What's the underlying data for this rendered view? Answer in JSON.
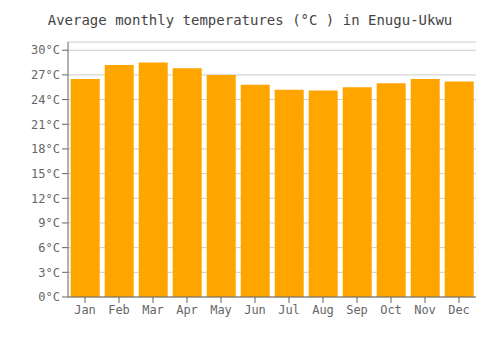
{
  "chart_data": {
    "type": "bar",
    "title": "Average monthly temperatures (°C ) in Enugu-Ukwu",
    "categories": [
      "Jan",
      "Feb",
      "Mar",
      "Apr",
      "May",
      "Jun",
      "Jul",
      "Aug",
      "Sep",
      "Oct",
      "Nov",
      "Dec"
    ],
    "values": [
      26.5,
      28.2,
      28.5,
      27.8,
      27.0,
      25.8,
      25.2,
      25.1,
      25.5,
      26.0,
      26.5,
      26.2
    ],
    "color": "#FFA500",
    "ylim": [
      0,
      31
    ],
    "yticks": [
      {
        "value": 0,
        "label": "0°C"
      },
      {
        "value": 3,
        "label": "3°C"
      },
      {
        "value": 6,
        "label": "6°C"
      },
      {
        "value": 9,
        "label": "9°C"
      },
      {
        "value": 12,
        "label": "12°C"
      },
      {
        "value": 15,
        "label": "15°C"
      },
      {
        "value": 18,
        "label": "18°C"
      },
      {
        "value": 21,
        "label": "21°C"
      },
      {
        "value": 24,
        "label": "24°C"
      },
      {
        "value": 27,
        "label": "27°C"
      },
      {
        "value": 30,
        "label": "30°C"
      }
    ],
    "grid": true
  }
}
